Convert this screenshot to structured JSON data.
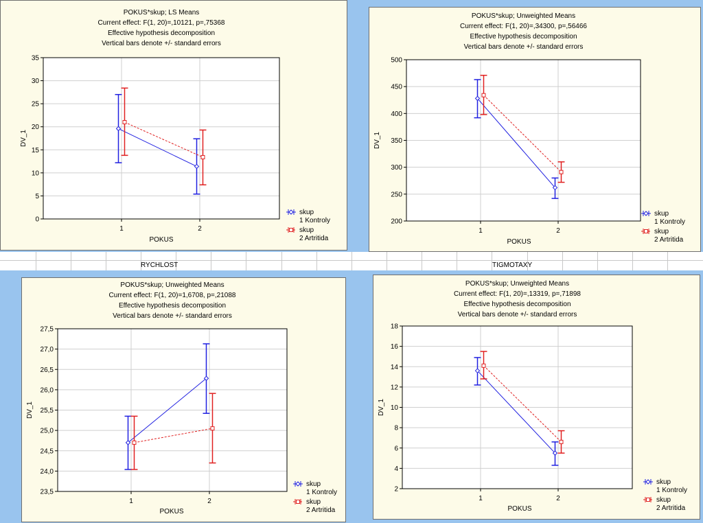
{
  "sheet": {
    "labels": [
      "RYCHLOST",
      "TIGMOTAXY"
    ]
  },
  "colors": {
    "series1": "#2020e0",
    "series2": "#e02020",
    "grid": "#cfcfcf",
    "panel_bg": "#fdfbe8",
    "page_bg": "#99c4ee"
  },
  "chart_data": [
    {
      "type": "line",
      "title_lines": [
        "POKUS*skup; LS Means",
        "Current effect: F(1, 20)=,10121, p=,75368",
        "Effective hypothesis decomposition",
        "Vertical bars denote +/- standard errors"
      ],
      "xlabel": "POKUS",
      "ylabel": "DV_1",
      "categories": [
        "1",
        "2"
      ],
      "ylim": [
        0,
        35
      ],
      "yticks": [
        "0",
        "5",
        "10",
        "15",
        "20",
        "25",
        "30",
        "35"
      ],
      "series": [
        {
          "name": "skup",
          "sub": "1 Kontroly",
          "marker": "diamond",
          "values": [
            19.6,
            11.4
          ],
          "lower": [
            12.2,
            5.4
          ],
          "upper": [
            27.0,
            17.4
          ]
        },
        {
          "name": "skup",
          "sub": "2 Artritida",
          "marker": "square",
          "values": [
            21.0,
            13.4
          ],
          "lower": [
            13.8,
            7.4
          ],
          "upper": [
            28.4,
            19.3
          ]
        }
      ]
    },
    {
      "type": "line",
      "title_lines": [
        "POKUS*skup; Unweighted Means",
        "Current effect: F(1, 20)=,34300, p=,56466",
        "Effective hypothesis decomposition",
        "Vertical bars denote +/- standard errors"
      ],
      "xlabel": "POKUS",
      "ylabel": "DV_1",
      "categories": [
        "1",
        "2"
      ],
      "ylim": [
        200,
        500
      ],
      "yticks": [
        "200",
        "250",
        "300",
        "350",
        "400",
        "450",
        "500"
      ],
      "series": [
        {
          "name": "skup",
          "sub": "1 Kontroly",
          "marker": "diamond",
          "values": [
            428,
            262
          ],
          "lower": [
            392,
            242
          ],
          "upper": [
            463,
            280
          ]
        },
        {
          "name": "skup",
          "sub": "2 Artritida",
          "marker": "square",
          "values": [
            434,
            291
          ],
          "lower": [
            398,
            272
          ],
          "upper": [
            471,
            310
          ]
        }
      ]
    },
    {
      "type": "line",
      "title_lines": [
        "POKUS*skup; Unweighted Means",
        "Current effect: F(1, 20)=1,6708, p=,21088",
        "Effective hypothesis decomposition",
        "Vertical bars denote +/- standard errors"
      ],
      "xlabel": "POKUS",
      "ylabel": "DV_1",
      "categories": [
        "1",
        "2"
      ],
      "ylim": [
        23.5,
        27.5
      ],
      "yticks": [
        "23,5",
        "24,0",
        "24,5",
        "25,0",
        "25,5",
        "26,0",
        "26,5",
        "27,0",
        "27,5"
      ],
      "series": [
        {
          "name": "skup",
          "sub": "1 Kontroly",
          "marker": "diamond",
          "values": [
            24.7,
            26.28
          ],
          "lower": [
            24.04,
            25.42
          ],
          "upper": [
            25.35,
            27.13
          ]
        },
        {
          "name": "skup",
          "sub": "2 Artritida",
          "marker": "square",
          "values": [
            24.7,
            25.05
          ],
          "lower": [
            24.04,
            24.2
          ],
          "upper": [
            25.35,
            25.91
          ]
        }
      ]
    },
    {
      "type": "line",
      "title_lines": [
        "POKUS*skup; Unweighted Means",
        "Current effect: F(1, 20)=,13319, p=,71898",
        "Effective hypothesis decomposition",
        "Vertical bars denote +/- standard errors"
      ],
      "xlabel": "POKUS",
      "ylabel": "DV_1",
      "categories": [
        "1",
        "2"
      ],
      "ylim": [
        2,
        18
      ],
      "yticks": [
        "2",
        "4",
        "6",
        "8",
        "10",
        "12",
        "14",
        "16",
        "18"
      ],
      "series": [
        {
          "name": "skup",
          "sub": "1 Kontroly",
          "marker": "diamond",
          "values": [
            13.6,
            5.5
          ],
          "lower": [
            12.2,
            4.3
          ],
          "upper": [
            14.9,
            6.6
          ]
        },
        {
          "name": "skup",
          "sub": "2 Artritida",
          "marker": "square",
          "values": [
            14.1,
            6.6
          ],
          "lower": [
            12.8,
            5.5
          ],
          "upper": [
            15.5,
            7.7
          ]
        }
      ]
    }
  ]
}
